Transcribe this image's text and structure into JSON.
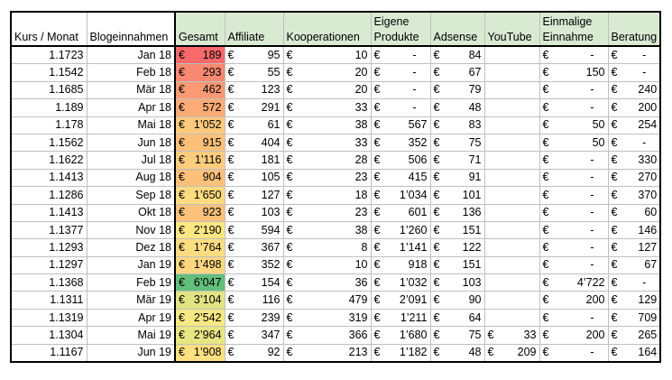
{
  "headers": {
    "kurs": "Kurs / Monat",
    "blog": "Blogeinnahmen",
    "gesamt": "Gesamt",
    "affiliate": "Affiliate",
    "koop": "Kooperationen",
    "eigene_l1": "Eigene",
    "eigene_l2": "Produkte",
    "adsense": "Adsense",
    "youtube": "YouTube",
    "einmalig_l1": "Einmalige",
    "einmalig_l2": "Einnahme",
    "beratung": "Beratung"
  },
  "currency": "€",
  "rows": [
    {
      "kurs": "1.1723",
      "monat": "Jan 18",
      "gesamt": "189",
      "gcolor": "#f8696b",
      "affiliate": "95",
      "koop": "10",
      "eigene": "-",
      "adsense": "84",
      "youtube": "",
      "einmalig": "-",
      "beratung": "-"
    },
    {
      "kurs": "1.1542",
      "monat": "Feb 18",
      "gesamt": "293",
      "gcolor": "#f98870",
      "affiliate": "55",
      "koop": "20",
      "eigene": "-",
      "adsense": "67",
      "youtube": "",
      "einmalig": "150",
      "beratung": "-"
    },
    {
      "kurs": "1.1685",
      "monat": "Mär 18",
      "gesamt": "462",
      "gcolor": "#fa9973",
      "affiliate": "123",
      "koop": "20",
      "eigene": "-",
      "adsense": "79",
      "youtube": "",
      "einmalig": "-",
      "beratung": "240"
    },
    {
      "kurs": "1.189",
      "monat": "Apr 18",
      "gesamt": "572",
      "gcolor": "#fbac76",
      "affiliate": "291",
      "koop": "33",
      "eigene": "-",
      "adsense": "48",
      "youtube": "",
      "einmalig": "-",
      "beratung": "200"
    },
    {
      "kurs": "1.178",
      "monat": "Mai 18",
      "gesamt": "1’052",
      "gcolor": "#fdc97d",
      "affiliate": "61",
      "koop": "38",
      "eigene": "567",
      "adsense": "83",
      "youtube": "",
      "einmalig": "50",
      "beratung": "254"
    },
    {
      "kurs": "1.1562",
      "monat": "Jun 18",
      "gesamt": "915",
      "gcolor": "#fcc07b",
      "affiliate": "404",
      "koop": "33",
      "eigene": "352",
      "adsense": "75",
      "youtube": "",
      "einmalig": "50",
      "beratung": "-"
    },
    {
      "kurs": "1.1622",
      "monat": "Jul 18",
      "gesamt": "1’116",
      "gcolor": "#fdcc7e",
      "affiliate": "181",
      "koop": "28",
      "eigene": "506",
      "adsense": "71",
      "youtube": "",
      "einmalig": "-",
      "beratung": "330"
    },
    {
      "kurs": "1.1413",
      "monat": "Aug 18",
      "gesamt": "904",
      "gcolor": "#fcc07b",
      "affiliate": "105",
      "koop": "23",
      "eigene": "415",
      "adsense": "91",
      "youtube": "",
      "einmalig": "-",
      "beratung": "270"
    },
    {
      "kurs": "1.1286",
      "monat": "Sep 18",
      "gesamt": "1’650",
      "gcolor": "#feda80",
      "affiliate": "127",
      "koop": "18",
      "eigene": "1’034",
      "adsense": "101",
      "youtube": "",
      "einmalig": "-",
      "beratung": "370"
    },
    {
      "kurs": "1.1413",
      "monat": "Okt 18",
      "gesamt": "923",
      "gcolor": "#fcc17b",
      "affiliate": "103",
      "koop": "23",
      "eigene": "601",
      "adsense": "136",
      "youtube": "",
      "einmalig": "-",
      "beratung": "60"
    },
    {
      "kurs": "1.1377",
      "monat": "Nov 18",
      "gesamt": "2’190",
      "gcolor": "#fee683",
      "affiliate": "594",
      "koop": "38",
      "eigene": "1’260",
      "adsense": "151",
      "youtube": "",
      "einmalig": "-",
      "beratung": "146"
    },
    {
      "kurs": "1.1293",
      "monat": "Dez 18",
      "gesamt": "1’764",
      "gcolor": "#fedc81",
      "affiliate": "367",
      "koop": "8",
      "eigene": "1’141",
      "adsense": "122",
      "youtube": "",
      "einmalig": "-",
      "beratung": "127"
    },
    {
      "kurs": "1.1297",
      "monat": "Jan 19",
      "gesamt": "1’498",
      "gcolor": "#fdd680",
      "affiliate": "352",
      "koop": "10",
      "eigene": "918",
      "adsense": "151",
      "youtube": "",
      "einmalig": "-",
      "beratung": "67"
    },
    {
      "kurs": "1.1368",
      "monat": "Feb 19",
      "gesamt": "6’047",
      "gcolor": "#63be7b",
      "affiliate": "154",
      "koop": "36",
      "eigene": "1’032",
      "adsense": "103",
      "youtube": "",
      "einmalig": "4’722",
      "beratung": "-"
    },
    {
      "kurs": "1.1311",
      "monat": "Mär 19",
      "gesamt": "3’104",
      "gcolor": "#e2e383",
      "affiliate": "116",
      "koop": "479",
      "eigene": "2’091",
      "adsense": "90",
      "youtube": "",
      "einmalig": "200",
      "beratung": "129"
    },
    {
      "kurs": "1.1319",
      "monat": "Apr 19",
      "gesamt": "2’542",
      "gcolor": "#f6e984",
      "affiliate": "239",
      "koop": "319",
      "eigene": "1’211",
      "adsense": "64",
      "youtube": "",
      "einmalig": "-",
      "beratung": "709"
    },
    {
      "kurs": "1.1304",
      "monat": "Mai 19",
      "gesamt": "2’964",
      "gcolor": "#e8e583",
      "affiliate": "347",
      "koop": "366",
      "eigene": "1’680",
      "adsense": "75",
      "youtube": "33",
      "einmalig": "200",
      "beratung": "265"
    },
    {
      "kurs": "1.1167",
      "monat": "Jun 19",
      "gesamt": "1’908",
      "gcolor": "#fee081",
      "affiliate": "92",
      "koop": "213",
      "eigene": "1’182",
      "adsense": "48",
      "youtube": "209",
      "einmalig": "-",
      "beratung": "164"
    }
  ]
}
